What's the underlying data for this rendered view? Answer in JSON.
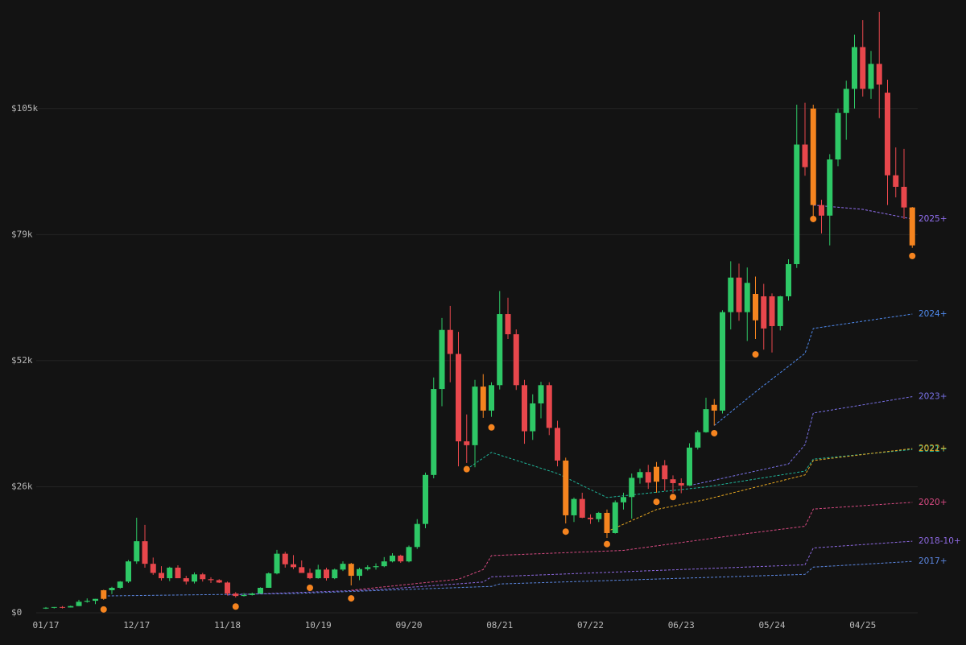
{
  "chart_data": {
    "type": "candlestick",
    "categories": [
      "01/17",
      null,
      null,
      null,
      null,
      null,
      null,
      null,
      null,
      null,
      null,
      "12/17",
      null,
      null,
      null,
      null,
      null,
      null,
      null,
      null,
      null,
      null,
      "11/18",
      null,
      null,
      null,
      null,
      null,
      null,
      null,
      null,
      null,
      null,
      "10/19",
      null,
      null,
      null,
      null,
      null,
      null,
      null,
      null,
      null,
      null,
      "09/20",
      null,
      null,
      null,
      null,
      null,
      null,
      null,
      null,
      null,
      null,
      "08/21",
      null,
      null,
      null,
      null,
      null,
      null,
      null,
      null,
      null,
      null,
      "07/22",
      null,
      null,
      null,
      null,
      null,
      null,
      null,
      null,
      null,
      null,
      "06/23",
      null,
      null,
      null,
      null,
      null,
      null,
      null,
      null,
      null,
      null,
      "05/24",
      null,
      null,
      null,
      null,
      null,
      null,
      null,
      null,
      null,
      null,
      "04/25",
      null,
      null,
      null,
      null,
      null,
      null
    ],
    "open": [
      1000,
      1050,
      1200,
      1100,
      1400,
      2300,
      2500,
      2900,
      4700,
      5200,
      6500,
      10700,
      14900,
      10200,
      8300,
      7200,
      9400,
      7200,
      6500,
      8000,
      7000,
      6800,
      6300,
      4000,
      3500,
      3700,
      4000,
      5200,
      8200,
      12300,
      10100,
      9500,
      8300,
      7200,
      9000,
      7200,
      9000,
      10200,
      7700,
      9100,
      9500,
      9700,
      10700,
      11900,
      10700,
      13700,
      18500,
      28700,
      46600,
      58900,
      53900,
      35700,
      34900,
      47100,
      42100,
      47400,
      62200,
      58000,
      47400,
      37800,
      43600,
      47400,
      38500,
      31700,
      20300,
      23700,
      19800,
      19500,
      20800,
      16600,
      23000,
      24100,
      28100,
      29300,
      30400,
      30700,
      27800,
      27000,
      26500,
      34400,
      37600,
      43300,
      42100,
      62600,
      69800,
      62600,
      66400,
      65900,
      65900,
      59700,
      65900,
      72600,
      97500,
      105000,
      84900,
      82700,
      94400,
      104100,
      109100,
      117800,
      109100,
      114300,
      108300,
      91100,
      88700,
      84400
    ],
    "high": [
      1200,
      1200,
      1400,
      1500,
      2700,
      3000,
      2900,
      4800,
      5400,
      6600,
      11000,
      19800,
      18300,
      11500,
      9700,
      9600,
      9900,
      7700,
      8400,
      8300,
      7400,
      7000,
      6500,
      4300,
      4100,
      4200,
      5300,
      8400,
      13100,
      12700,
      12000,
      10900,
      9200,
      10000,
      9400,
      9200,
      10700,
      10400,
      9400,
      9900,
      10300,
      11600,
      12400,
      12100,
      14000,
      19500,
      29200,
      49000,
      61400,
      63900,
      58500,
      41300,
      48500,
      49700,
      48000,
      67000,
      65600,
      59000,
      48500,
      45500,
      48100,
      48000,
      40000,
      32300,
      24000,
      25000,
      20500,
      21000,
      21500,
      23400,
      25000,
      29000,
      30000,
      30800,
      31400,
      31800,
      28600,
      28000,
      35300,
      38000,
      44800,
      44500,
      63000,
      73200,
      72700,
      71900,
      70000,
      68500,
      66500,
      66000,
      73600,
      105800,
      106200,
      105800,
      86000,
      95500,
      105000,
      110800,
      120400,
      123400,
      117000,
      125100,
      111000,
      96900,
      96600,
      84500
    ],
    "low": [
      800,
      900,
      900,
      1100,
      1400,
      2100,
      1800,
      2700,
      3900,
      5000,
      6200,
      10200,
      9400,
      7900,
      6700,
      6600,
      7200,
      5900,
      6100,
      6500,
      6200,
      6200,
      3600,
      3200,
      3400,
      3600,
      4000,
      5200,
      8000,
      9400,
      9100,
      8300,
      7000,
      7100,
      6700,
      7000,
      8700,
      5700,
      6800,
      8800,
      9000,
      9500,
      10500,
      10400,
      10500,
      13300,
      17600,
      28000,
      43000,
      48000,
      30500,
      31200,
      30300,
      40600,
      40800,
      46500,
      57000,
      46400,
      35200,
      36000,
      40500,
      37000,
      30500,
      18600,
      18900,
      19700,
      18500,
      18900,
      15600,
      16500,
      21500,
      19600,
      26900,
      25800,
      25000,
      25400,
      25000,
      24900,
      26400,
      34000,
      37500,
      39000,
      41500,
      59000,
      60800,
      56600,
      57000,
      54800,
      54200,
      58800,
      65000,
      71800,
      91000,
      82000,
      79000,
      76500,
      93000,
      98500,
      105000,
      107500,
      107000,
      103000,
      84900,
      86500,
      82000,
      76000
    ],
    "close": [
      1050,
      1200,
      1100,
      1400,
      2300,
      2500,
      2900,
      4700,
      5200,
      6500,
      10700,
      14900,
      10200,
      8300,
      7200,
      9400,
      7200,
      6500,
      8000,
      7000,
      6800,
      6300,
      4000,
      3500,
      3700,
      4000,
      5200,
      8200,
      12300,
      10100,
      9500,
      8300,
      7200,
      9000,
      7200,
      9000,
      10200,
      7700,
      9100,
      9500,
      9700,
      10700,
      11900,
      10700,
      13700,
      18500,
      28700,
      46600,
      58900,
      53900,
      35700,
      34900,
      47100,
      42100,
      47400,
      62200,
      58000,
      47400,
      37800,
      43600,
      47400,
      38500,
      31700,
      20300,
      23700,
      19800,
      19500,
      20800,
      16600,
      23000,
      24100,
      28100,
      29300,
      27100,
      27300,
      27800,
      27000,
      26500,
      34400,
      37600,
      42400,
      42100,
      62600,
      69800,
      62600,
      68700,
      60900,
      59200,
      59700,
      65900,
      72600,
      97500,
      92800,
      84900,
      82700,
      94400,
      104100,
      109100,
      117800,
      109100,
      114300,
      110000,
      91100,
      88700,
      84400,
      76500
    ],
    "up_color": "#2ec866",
    "down_color": "#e8474c",
    "highlight": [
      7,
      37,
      53,
      63,
      68,
      74,
      81,
      86,
      93,
      105
    ],
    "highlight_color": "#f5841f",
    "ylim": [
      0,
      127600
    ],
    "yticks": [
      {
        "value": 0,
        "label": "$0"
      },
      {
        "value": 26250,
        "label": "$26k"
      },
      {
        "value": 52500,
        "label": "$52k"
      },
      {
        "value": 78750,
        "label": "$79k"
      },
      {
        "value": 105000,
        "label": "$105k"
      }
    ],
    "grid": true,
    "markers": {
      "color": "#f5841f",
      "x": [
        7,
        23,
        32,
        37,
        51,
        54,
        63,
        68,
        74,
        76,
        81,
        86,
        93,
        105
      ],
      "values": [
        700,
        1300,
        5200,
        3000,
        29900,
        38600,
        16900,
        14300,
        23100,
        24100,
        37400,
        53800,
        82000,
        74300
      ]
    },
    "series": [
      {
        "name": "2017+",
        "color": "#5b86e0",
        "x": [
          7,
          30,
          54,
          55,
          92,
          93,
          105
        ],
        "values": [
          3500,
          4000,
          5500,
          6000,
          8000,
          9500,
          10700
        ]
      },
      {
        "name": "2018-10+",
        "color": "#8c68e0",
        "x": [
          22,
          40,
          53,
          54,
          92,
          93,
          105
        ],
        "values": [
          3700,
          4800,
          6400,
          7500,
          10000,
          13500,
          14900
        ]
      },
      {
        "name": "2020+",
        "color": "#d84a82",
        "x": [
          37,
          50,
          53,
          54,
          70,
          85,
          92,
          93,
          105
        ],
        "values": [
          4700,
          7000,
          9000,
          11900,
          13000,
          16500,
          18000,
          21600,
          23000
        ]
      },
      {
        "name": "2021+",
        "color": "#1fb59a",
        "x": [
          51,
          54,
          62,
          68,
          80,
          92,
          93,
          105
        ],
        "values": [
          29900,
          33400,
          29000,
          24000,
          26200,
          29500,
          32000,
          34000
        ]
      },
      {
        "name": "2022+",
        "color": "#e8a820",
        "x": [
          68,
          74,
          80,
          92,
          93,
          105
        ],
        "values": [
          16900,
          21500,
          23600,
          28700,
          31700,
          34200
        ]
      },
      {
        "name": "2023+",
        "color": "#7a72e8",
        "x": [
          78,
          90,
          92,
          93,
          105
        ],
        "values": [
          26500,
          31000,
          35000,
          41600,
          45000
        ]
      },
      {
        "name": "2024+",
        "color": "#4f8aee",
        "x": [
          81,
          86,
          89,
          92,
          93,
          105
        ],
        "values": [
          39000,
          46000,
          50000,
          54000,
          59200,
          62200
        ]
      },
      {
        "name": "2025+",
        "color": "#9270f2",
        "x": [
          93,
          99,
          105
        ],
        "values": [
          84900,
          84000,
          82000
        ]
      }
    ]
  }
}
